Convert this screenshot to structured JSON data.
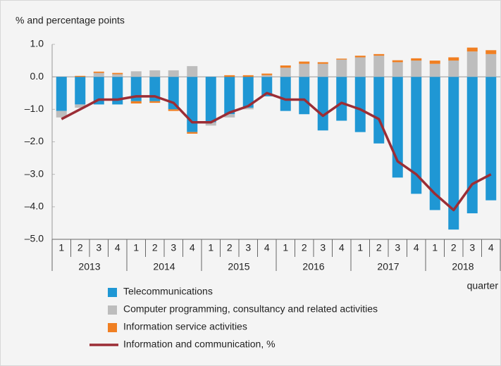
{
  "chart_data": {
    "type": "bar-line",
    "ylabel": "% and percentage points",
    "xlabel": "quarter",
    "categories": [
      "1",
      "2",
      "3",
      "4",
      "1",
      "2",
      "3",
      "4",
      "1",
      "2",
      "3",
      "4",
      "1",
      "2",
      "3",
      "4",
      "1",
      "2",
      "3",
      "4",
      "1",
      "2",
      "3",
      "4"
    ],
    "years": [
      "2013",
      "2014",
      "2015",
      "2016",
      "2017",
      "2018"
    ],
    "ylim": [
      -5,
      1
    ],
    "yticks": [
      {
        "value": 1,
        "label": "1.0"
      },
      {
        "value": 0,
        "label": "0.0"
      },
      {
        "value": -1,
        "label": "–1.0"
      },
      {
        "value": -2,
        "label": "–2.0"
      },
      {
        "value": -3,
        "label": "–3.0"
      },
      {
        "value": -4,
        "label": "–4.0"
      },
      {
        "value": -5,
        "label": "–5.0"
      }
    ],
    "series": [
      {
        "name": "Telecommunications",
        "color": "#1f97d4",
        "kind": "bar",
        "values": [
          -1.05,
          -0.85,
          -0.85,
          -0.85,
          -0.75,
          -0.75,
          -1.0,
          -1.7,
          -1.4,
          -1.15,
          -0.95,
          -0.6,
          -1.05,
          -1.15,
          -1.65,
          -1.35,
          -1.7,
          -2.05,
          -3.1,
          -3.6,
          -4.1,
          -4.7,
          -4.2,
          -3.8
        ]
      },
      {
        "name": "Computer programming, consultancy and related activities",
        "color": "#bdbdbd",
        "kind": "bar",
        "values": [
          -0.2,
          -0.1,
          0.12,
          0.08,
          0.17,
          0.2,
          0.2,
          0.33,
          -0.1,
          -0.1,
          -0.05,
          0.05,
          0.28,
          0.4,
          0.4,
          0.53,
          0.6,
          0.65,
          0.45,
          0.5,
          0.4,
          0.5,
          0.78,
          0.7
        ]
      },
      {
        "name": "Information service activities",
        "color": "#f07f22",
        "kind": "bar",
        "values": [
          0,
          0.03,
          0.04,
          0.04,
          -0.07,
          -0.05,
          -0.05,
          -0.05,
          0,
          0.05,
          0.05,
          0.05,
          0.07,
          0.07,
          0.05,
          0.03,
          0.05,
          0.05,
          0.06,
          0.07,
          0.1,
          0.1,
          0.12,
          0.12
        ]
      },
      {
        "name": "Information and communication, %",
        "color": "#9b2d35",
        "kind": "line",
        "values": [
          -1.3,
          -1.0,
          -0.7,
          -0.7,
          -0.6,
          -0.6,
          -0.8,
          -1.4,
          -1.4,
          -1.1,
          -0.9,
          -0.5,
          -0.7,
          -0.7,
          -1.2,
          -0.8,
          -1.0,
          -1.3,
          -2.6,
          -3.0,
          -3.6,
          -4.1,
          -3.3,
          -3.0
        ]
      }
    ]
  }
}
